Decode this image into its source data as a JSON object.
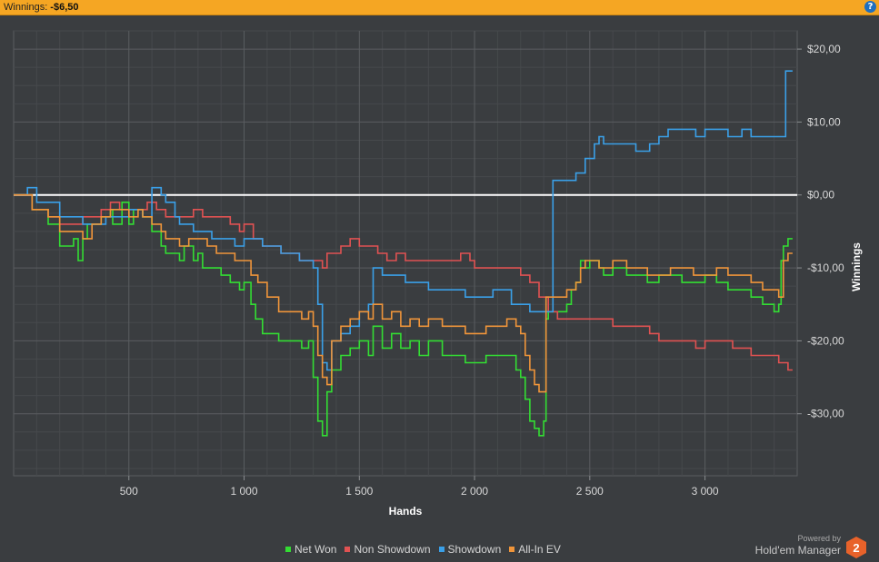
{
  "header": {
    "winnings_label": "Winnings:",
    "winnings_value": "-$6,50",
    "help_symbol": "?"
  },
  "branding": {
    "powered_by": "Powered by",
    "product": "Hold'em Manager",
    "badge": "2",
    "badge_color": "#e8622a"
  },
  "colors": {
    "background": "#3a3d40",
    "grid_major": "#5a5d60",
    "grid_minor": "#46494c",
    "zero_line": "#ffffff",
    "header_bar": "#f5a623"
  },
  "chart_data": {
    "type": "line",
    "xlabel": "Hands",
    "ylabel": "Winnings",
    "xlim": [
      0,
      3400
    ],
    "ylim": [
      -38.5,
      22.5
    ],
    "x_ticks": [
      {
        "value": 500,
        "label": "500"
      },
      {
        "value": 1000,
        "label": "1 000"
      },
      {
        "value": 1500,
        "label": "1 500"
      },
      {
        "value": 2000,
        "label": "2 000"
      },
      {
        "value": 2500,
        "label": "2 500"
      },
      {
        "value": 3000,
        "label": "3 000"
      }
    ],
    "y_ticks": [
      {
        "value": 20,
        "label": "$20,00"
      },
      {
        "value": 10,
        "label": "$10,00"
      },
      {
        "value": 0,
        "label": "$0,00"
      },
      {
        "value": -10,
        "label": "-$10,00"
      },
      {
        "value": -20,
        "label": "-$20,00"
      },
      {
        "value": -30,
        "label": "-$30,00"
      }
    ],
    "grid": true,
    "legend_position": "bottom",
    "series": [
      {
        "name": "Net Won",
        "color": "#33dd33",
        "x": [
          0,
          80,
          150,
          200,
          260,
          280,
          300,
          320,
          380,
          420,
          430,
          470,
          500,
          520,
          560,
          600,
          640,
          660,
          700,
          720,
          740,
          780,
          800,
          820,
          860,
          900,
          940,
          980,
          1000,
          1030,
          1050,
          1080,
          1100,
          1150,
          1200,
          1250,
          1280,
          1300,
          1320,
          1340,
          1360,
          1380,
          1420,
          1460,
          1500,
          1540,
          1560,
          1600,
          1640,
          1680,
          1720,
          1760,
          1800,
          1860,
          1920,
          1960,
          2000,
          2050,
          2100,
          2140,
          2180,
          2200,
          2220,
          2240,
          2260,
          2280,
          2300,
          2310,
          2320,
          2350,
          2400,
          2420,
          2440,
          2460,
          2480,
          2500,
          2540,
          2560,
          2600,
          2660,
          2700,
          2750,
          2800,
          2850,
          2900,
          2950,
          3000,
          3050,
          3100,
          3150,
          3200,
          3250,
          3300,
          3320,
          3330,
          3340,
          3360,
          3380
        ],
        "y": [
          0,
          -2,
          -4,
          -7,
          -6,
          -9,
          -6,
          -4,
          -3,
          -2,
          -4,
          -1,
          -4,
          -2,
          -3,
          -5,
          -7,
          -8,
          -8,
          -9,
          -7,
          -9,
          -8,
          -10,
          -10,
          -11,
          -12,
          -13,
          -12,
          -15,
          -17,
          -19,
          -19,
          -20,
          -20,
          -21,
          -20,
          -25,
          -31,
          -33,
          -27,
          -24,
          -22,
          -21,
          -20,
          -22,
          -18,
          -21,
          -19,
          -21,
          -20,
          -22,
          -20,
          -22,
          -22,
          -23,
          -23,
          -22,
          -22,
          -22,
          -24,
          -25,
          -28,
          -31,
          -32,
          -33,
          -31,
          -17,
          -16,
          -16,
          -15,
          -13,
          -12,
          -9,
          -10,
          -9,
          -10,
          -11,
          -10,
          -11,
          -11,
          -12,
          -11,
          -11,
          -12,
          -12,
          -11,
          -12,
          -13,
          -13,
          -14,
          -15,
          -16,
          -15,
          -9,
          -7,
          -6,
          -6
        ]
      },
      {
        "name": "Non Showdown",
        "color": "#e05252",
        "x": [
          0,
          80,
          150,
          200,
          260,
          300,
          340,
          380,
          420,
          460,
          500,
          540,
          580,
          620,
          660,
          700,
          740,
          780,
          820,
          860,
          900,
          940,
          980,
          1000,
          1040,
          1080,
          1120,
          1160,
          1200,
          1240,
          1280,
          1320,
          1340,
          1360,
          1380,
          1420,
          1460,
          1500,
          1540,
          1580,
          1620,
          1660,
          1700,
          1740,
          1780,
          1820,
          1860,
          1900,
          1940,
          1980,
          2000,
          2040,
          2080,
          2120,
          2160,
          2200,
          2240,
          2280,
          2320,
          2360,
          2400,
          2440,
          2480,
          2520,
          2560,
          2600,
          2640,
          2680,
          2720,
          2760,
          2800,
          2840,
          2880,
          2920,
          2960,
          3000,
          3040,
          3080,
          3120,
          3160,
          3200,
          3240,
          3280,
          3320,
          3360,
          3380
        ],
        "y": [
          0,
          -2,
          -3,
          -4,
          -4,
          -3,
          -3,
          -2,
          -1,
          -2,
          -2,
          -2,
          -1,
          -2,
          -3,
          -3,
          -3,
          -2,
          -3,
          -3,
          -3,
          -4,
          -5,
          -4,
          -6,
          -7,
          -7,
          -8,
          -8,
          -9,
          -9,
          -9,
          -10,
          -8,
          -8,
          -7,
          -6,
          -7,
          -7,
          -8,
          -9,
          -8,
          -9,
          -9,
          -9,
          -9,
          -9,
          -9,
          -8,
          -9,
          -10,
          -10,
          -10,
          -10,
          -10,
          -11,
          -12,
          -14,
          -16,
          -17,
          -17,
          -17,
          -17,
          -17,
          -17,
          -18,
          -18,
          -18,
          -18,
          -19,
          -20,
          -20,
          -20,
          -20,
          -21,
          -20,
          -20,
          -20,
          -21,
          -21,
          -22,
          -22,
          -22,
          -23,
          -24,
          -24
        ]
      },
      {
        "name": "Showdown",
        "color": "#3aa0e8",
        "x": [
          0,
          60,
          100,
          200,
          300,
          400,
          500,
          560,
          600,
          640,
          660,
          700,
          720,
          780,
          820,
          860,
          900,
          960,
          1000,
          1040,
          1080,
          1120,
          1160,
          1200,
          1240,
          1280,
          1300,
          1320,
          1340,
          1360,
          1380,
          1420,
          1460,
          1500,
          1540,
          1560,
          1600,
          1640,
          1700,
          1760,
          1800,
          1860,
          1900,
          1960,
          2000,
          2040,
          2080,
          2120,
          2160,
          2200,
          2240,
          2280,
          2300,
          2320,
          2340,
          2400,
          2440,
          2480,
          2500,
          2520,
          2540,
          2560,
          2600,
          2640,
          2700,
          2760,
          2800,
          2840,
          2900,
          2960,
          3000,
          3060,
          3100,
          3160,
          3200,
          3260,
          3300,
          3320,
          3340,
          3350,
          3360,
          3380
        ],
        "y": [
          0,
          1,
          -1,
          -3,
          -4,
          -3,
          -2,
          -3,
          1,
          0,
          -1,
          -3,
          -4,
          -5,
          -5,
          -6,
          -6,
          -7,
          -6,
          -6,
          -7,
          -7,
          -8,
          -8,
          -9,
          -9,
          -10,
          -15,
          -23,
          -24,
          -20,
          -19,
          -18,
          -16,
          -15,
          -10,
          -11,
          -11,
          -12,
          -12,
          -13,
          -13,
          -13,
          -14,
          -14,
          -14,
          -13,
          -13,
          -15,
          -15,
          -16,
          -16,
          -16,
          -16,
          2,
          2,
          3,
          5,
          5,
          7,
          8,
          7,
          7,
          7,
          6,
          7,
          8,
          9,
          9,
          8,
          9,
          9,
          8,
          9,
          8,
          8,
          8,
          8,
          8,
          17,
          17,
          17
        ]
      },
      {
        "name": "All-In EV",
        "color": "#f0953a",
        "x": [
          0,
          80,
          150,
          200,
          260,
          300,
          340,
          380,
          420,
          460,
          500,
          540,
          560,
          600,
          640,
          660,
          700,
          720,
          760,
          800,
          840,
          880,
          920,
          960,
          1000,
          1030,
          1060,
          1100,
          1150,
          1200,
          1250,
          1280,
          1300,
          1320,
          1340,
          1360,
          1380,
          1420,
          1460,
          1500,
          1540,
          1560,
          1600,
          1640,
          1680,
          1720,
          1760,
          1800,
          1860,
          1920,
          1960,
          2000,
          2050,
          2100,
          2140,
          2180,
          2200,
          2220,
          2240,
          2260,
          2280,
          2300,
          2310,
          2320,
          2360,
          2400,
          2440,
          2460,
          2480,
          2500,
          2540,
          2560,
          2600,
          2660,
          2700,
          2750,
          2800,
          2850,
          2900,
          2950,
          3000,
          3050,
          3100,
          3150,
          3200,
          3250,
          3300,
          3320,
          3330,
          3340,
          3360,
          3380
        ],
        "y": [
          0,
          -2,
          -3,
          -5,
          -5,
          -6,
          -4,
          -3,
          -2,
          -2,
          -3,
          -2,
          -3,
          -4,
          -5,
          -6,
          -6,
          -7,
          -6,
          -6,
          -7,
          -8,
          -8,
          -9,
          -9,
          -11,
          -12,
          -14,
          -16,
          -16,
          -17,
          -16,
          -18,
          -22,
          -25,
          -26,
          -20,
          -18,
          -17,
          -16,
          -17,
          -15,
          -17,
          -16,
          -18,
          -17,
          -18,
          -17,
          -18,
          -18,
          -19,
          -19,
          -18,
          -18,
          -17,
          -18,
          -19,
          -22,
          -24,
          -26,
          -27,
          -27,
          -14,
          -14,
          -14,
          -13,
          -12,
          -10,
          -9,
          -9,
          -10,
          -10,
          -9,
          -10,
          -10,
          -11,
          -11,
          -10,
          -10,
          -11,
          -11,
          -10,
          -11,
          -11,
          -12,
          -13,
          -13,
          -14,
          -14,
          -9,
          -8,
          -8
        ]
      }
    ]
  }
}
